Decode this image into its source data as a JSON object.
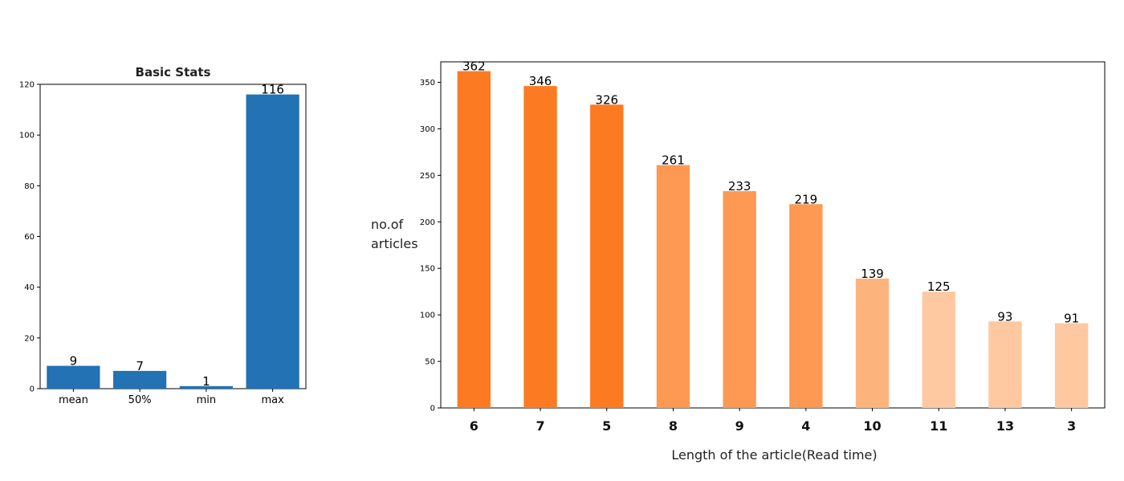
{
  "chart_data": [
    {
      "type": "bar",
      "title": "Basic Stats",
      "xlabel": "",
      "ylabel": "",
      "categories": [
        "mean",
        "50%",
        "min",
        "max"
      ],
      "values": [
        9,
        7,
        1,
        116
      ],
      "data_labels": [
        "9",
        "7",
        "1",
        "116"
      ],
      "ylim": [
        0,
        120
      ],
      "yticks": [
        0,
        20,
        40,
        60,
        80,
        100,
        120
      ],
      "grid": false,
      "bar_color": "#2272b4"
    },
    {
      "type": "bar",
      "title": "",
      "xlabel": "Length of the article(Read time)",
      "ylabel": "no.of articles",
      "categories": [
        "6",
        "7",
        "5",
        "8",
        "9",
        "4",
        "10",
        "11",
        "13",
        "3"
      ],
      "values": [
        362,
        346,
        326,
        261,
        233,
        219,
        139,
        125,
        93,
        91
      ],
      "data_labels": [
        "362",
        "346",
        "326",
        "261",
        "233",
        "219",
        "139",
        "125",
        "93",
        "91"
      ],
      "ylim": [
        0,
        372
      ],
      "yticks": [
        0,
        50,
        100,
        150,
        200,
        250,
        300,
        350
      ],
      "grid": false,
      "bar_colors": [
        "#fc7b22",
        "#fc7b22",
        "#fc7b22",
        "#fd9952",
        "#fd9952",
        "#fd9952",
        "#fdb47c",
        "#fec8a0",
        "#fec8a0",
        "#fec8a0"
      ]
    }
  ]
}
